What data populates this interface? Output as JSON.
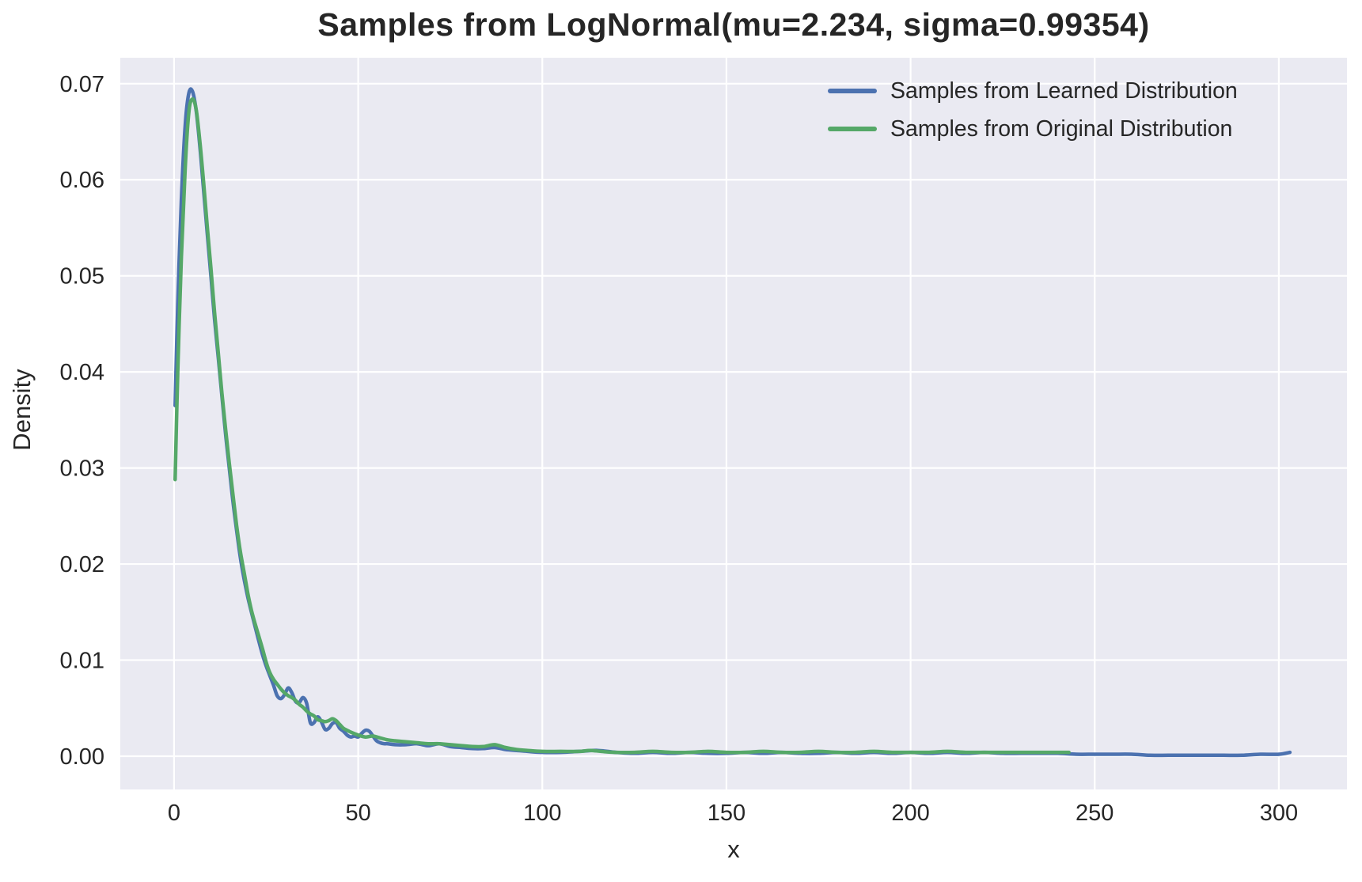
{
  "chart_data": {
    "type": "line",
    "title": "Samples from LogNormal(mu=2.234, sigma=0.99354)",
    "xlabel": "x",
    "ylabel": "Density",
    "xlim": [
      -14.6,
      318.5
    ],
    "ylim": [
      -0.00346,
      0.0727
    ],
    "xticks": [
      0,
      50,
      100,
      150,
      200,
      250,
      300
    ],
    "yticks": [
      0,
      0.01,
      0.02,
      0.03,
      0.04,
      0.05,
      0.06,
      0.07
    ],
    "ytick_labels": [
      "0.00",
      "0.01",
      "0.02",
      "0.03",
      "0.04",
      "0.05",
      "0.06",
      "0.07"
    ],
    "xtick_labels": [
      "0",
      "50",
      "100",
      "150",
      "200",
      "250",
      "300"
    ],
    "grid": true,
    "legend_position": "upper right",
    "plot_background_color": "#EAEAF2",
    "grid_color": "#FFFFFF",
    "text_color": "#262626",
    "series": [
      {
        "name": "Samples from Learned Distribution",
        "color": "#4C72B0",
        "points": [
          [
            0.3,
            0.0365
          ],
          [
            1,
            0.047
          ],
          [
            2,
            0.058
          ],
          [
            3,
            0.0655
          ],
          [
            4,
            0.069
          ],
          [
            5,
            0.0692
          ],
          [
            6,
            0.0672
          ],
          [
            7,
            0.0635
          ],
          [
            8,
            0.059
          ],
          [
            9,
            0.0545
          ],
          [
            10,
            0.05
          ],
          [
            11,
            0.0455
          ],
          [
            12,
            0.0415
          ],
          [
            13,
            0.0375
          ],
          [
            14,
            0.0335
          ],
          [
            15,
            0.03
          ],
          [
            16,
            0.0265
          ],
          [
            17,
            0.0235
          ],
          [
            18,
            0.0207
          ],
          [
            19,
            0.0185
          ],
          [
            20,
            0.0166
          ],
          [
            21,
            0.015
          ],
          [
            22,
            0.0135
          ],
          [
            23,
            0.012
          ],
          [
            24,
            0.0106
          ],
          [
            25,
            0.0094
          ],
          [
            26,
            0.0084
          ],
          [
            27,
            0.0074
          ],
          [
            28,
            0.0063
          ],
          [
            29,
            0.006
          ],
          [
            30,
            0.0064
          ],
          [
            31,
            0.0071
          ],
          [
            32,
            0.0066
          ],
          [
            33,
            0.0057
          ],
          [
            34,
            0.0056
          ],
          [
            35,
            0.0061
          ],
          [
            36,
            0.0055
          ],
          [
            37,
            0.0035
          ],
          [
            38,
            0.0035
          ],
          [
            39,
            0.0041
          ],
          [
            40,
            0.0036
          ],
          [
            41,
            0.0028
          ],
          [
            42,
            0.0029
          ],
          [
            43,
            0.0034
          ],
          [
            44,
            0.0035
          ],
          [
            45,
            0.0029
          ],
          [
            46,
            0.0026
          ],
          [
            47,
            0.0022
          ],
          [
            48,
            0.002
          ],
          [
            49,
            0.0021
          ],
          [
            50,
            0.002
          ],
          [
            51,
            0.0024
          ],
          [
            52,
            0.0027
          ],
          [
            53,
            0.0026
          ],
          [
            54,
            0.0021
          ],
          [
            55,
            0.0016
          ],
          [
            56,
            0.0014
          ],
          [
            57,
            0.0013
          ],
          [
            58,
            0.0013
          ],
          [
            60,
            0.0012
          ],
          [
            63,
            0.0012
          ],
          [
            66,
            0.0013
          ],
          [
            69,
            0.0011
          ],
          [
            72,
            0.0013
          ],
          [
            75,
            0.001
          ],
          [
            78,
            0.0009
          ],
          [
            81,
            0.0008
          ],
          [
            84,
            0.0008
          ],
          [
            87,
            0.0009
          ],
          [
            90,
            0.0007
          ],
          [
            93,
            0.0006
          ],
          [
            96,
            0.0005
          ],
          [
            100,
            0.0004
          ],
          [
            105,
            0.0004
          ],
          [
            110,
            0.0005
          ],
          [
            115,
            0.0006
          ],
          [
            120,
            0.0004
          ],
          [
            125,
            0.0003
          ],
          [
            130,
            0.0004
          ],
          [
            135,
            0.0003
          ],
          [
            140,
            0.0004
          ],
          [
            145,
            0.0003
          ],
          [
            150,
            0.0003
          ],
          [
            155,
            0.0004
          ],
          [
            160,
            0.0003
          ],
          [
            165,
            0.0004
          ],
          [
            170,
            0.0003
          ],
          [
            175,
            0.0003
          ],
          [
            180,
            0.0004
          ],
          [
            185,
            0.0003
          ],
          [
            190,
            0.0004
          ],
          [
            195,
            0.0003
          ],
          [
            200,
            0.0004
          ],
          [
            205,
            0.0003
          ],
          [
            210,
            0.0004
          ],
          [
            215,
            0.0003
          ],
          [
            220,
            0.0004
          ],
          [
            225,
            0.0003
          ],
          [
            230,
            0.0003
          ],
          [
            235,
            0.0003
          ],
          [
            240,
            0.0003
          ],
          [
            245,
            0.0002
          ],
          [
            250,
            0.0002
          ],
          [
            255,
            0.0002
          ],
          [
            260,
            0.0002
          ],
          [
            265,
            0.0001
          ],
          [
            270,
            0.0001
          ],
          [
            275,
            0.0001
          ],
          [
            280,
            0.0001
          ],
          [
            285,
            0.0001
          ],
          [
            290,
            0.0001
          ],
          [
            295,
            0.0002
          ],
          [
            300,
            0.0002
          ],
          [
            303,
            0.0004
          ]
        ]
      },
      {
        "name": "Samples from Original Distribution",
        "color": "#55A868",
        "points": [
          [
            0.3,
            0.0288
          ],
          [
            1,
            0.04
          ],
          [
            2,
            0.052
          ],
          [
            3,
            0.061
          ],
          [
            4,
            0.067
          ],
          [
            5,
            0.0684
          ],
          [
            6,
            0.0673
          ],
          [
            7,
            0.064
          ],
          [
            8,
            0.0598
          ],
          [
            9,
            0.0552
          ],
          [
            10,
            0.0508
          ],
          [
            11,
            0.0462
          ],
          [
            12,
            0.042
          ],
          [
            13,
            0.0378
          ],
          [
            14,
            0.034
          ],
          [
            15,
            0.0305
          ],
          [
            16,
            0.0272
          ],
          [
            17,
            0.024
          ],
          [
            18,
            0.0213
          ],
          [
            19,
            0.0192
          ],
          [
            20,
            0.017
          ],
          [
            21,
            0.0152
          ],
          [
            22,
            0.0138
          ],
          [
            23,
            0.0125
          ],
          [
            24,
            0.0112
          ],
          [
            25,
            0.0098
          ],
          [
            26,
            0.0087
          ],
          [
            27,
            0.008
          ],
          [
            28,
            0.0075
          ],
          [
            29,
            0.007
          ],
          [
            30,
            0.0066
          ],
          [
            31,
            0.0063
          ],
          [
            32,
            0.0061
          ],
          [
            33,
            0.0058
          ],
          [
            34,
            0.0054
          ],
          [
            35,
            0.0051
          ],
          [
            36,
            0.0047
          ],
          [
            37,
            0.0044
          ],
          [
            38,
            0.0042
          ],
          [
            39,
            0.0038
          ],
          [
            40,
            0.0037
          ],
          [
            41,
            0.0036
          ],
          [
            42,
            0.0037
          ],
          [
            43,
            0.0039
          ],
          [
            44,
            0.0037
          ],
          [
            45,
            0.0033
          ],
          [
            46,
            0.0029
          ],
          [
            47,
            0.0027
          ],
          [
            48,
            0.0025
          ],
          [
            50,
            0.0022
          ],
          [
            52,
            0.002
          ],
          [
            54,
            0.0021
          ],
          [
            56,
            0.0019
          ],
          [
            58,
            0.0017
          ],
          [
            60,
            0.0016
          ],
          [
            63,
            0.0015
          ],
          [
            66,
            0.0014
          ],
          [
            69,
            0.0013
          ],
          [
            72,
            0.0013
          ],
          [
            75,
            0.0012
          ],
          [
            78,
            0.0011
          ],
          [
            81,
            0.001
          ],
          [
            84,
            0.001
          ],
          [
            87,
            0.0012
          ],
          [
            90,
            0.0009
          ],
          [
            93,
            0.0007
          ],
          [
            96,
            0.0006
          ],
          [
            100,
            0.0005
          ],
          [
            105,
            0.0005
          ],
          [
            110,
            0.0005
          ],
          [
            113,
            0.0006
          ],
          [
            116,
            0.0005
          ],
          [
            120,
            0.0004
          ],
          [
            125,
            0.0004
          ],
          [
            130,
            0.0005
          ],
          [
            135,
            0.0004
          ],
          [
            140,
            0.0004
          ],
          [
            145,
            0.0005
          ],
          [
            150,
            0.0004
          ],
          [
            155,
            0.0004
          ],
          [
            160,
            0.0005
          ],
          [
            165,
            0.0004
          ],
          [
            170,
            0.0004
          ],
          [
            175,
            0.0005
          ],
          [
            180,
            0.0004
          ],
          [
            185,
            0.0004
          ],
          [
            190,
            0.0005
          ],
          [
            195,
            0.0004
          ],
          [
            200,
            0.0004
          ],
          [
            205,
            0.0004
          ],
          [
            210,
            0.0005
          ],
          [
            215,
            0.0004
          ],
          [
            220,
            0.0004
          ],
          [
            225,
            0.0004
          ],
          [
            230,
            0.0004
          ],
          [
            235,
            0.0004
          ],
          [
            240,
            0.0004
          ],
          [
            243,
            0.0004
          ]
        ]
      }
    ]
  }
}
